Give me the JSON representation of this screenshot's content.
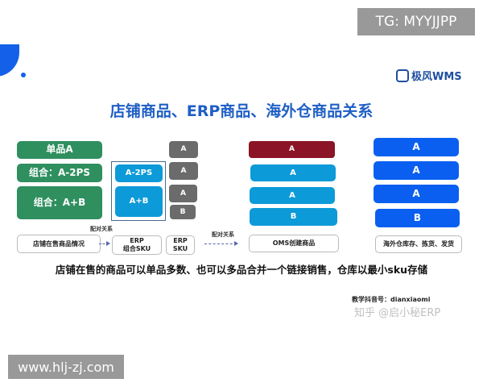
{
  "overlay_top": "TG: MYYJJPP",
  "overlay_bottom": "www.hlj-zj.com",
  "brand": "极风WMS",
  "title": "店铺商品、ERP商品、海外仓商品关系",
  "store_items": [
    "单品A",
    "组合：A-2PS",
    "组合：A+B"
  ],
  "erp_combo_items": [
    "A-2PS",
    "A+B"
  ],
  "erp_sku_items": [
    "A",
    "A",
    "A",
    "B"
  ],
  "oms_items": [
    "A",
    "A",
    "A",
    "B"
  ],
  "warehouse_items": [
    "A",
    "A",
    "A",
    "B"
  ],
  "labels": {
    "store": "店铺在售商品情况",
    "erp_combo_1": "ERP",
    "erp_combo_2": "组合SKU",
    "erp_sku_1": "ERP",
    "erp_sku_2": "SKU",
    "oms": "OMS创建商品",
    "warehouse": "海外仓库存、拣货、发货",
    "relation_1": "配对关系",
    "relation_2": "配对关系"
  },
  "summary": "店铺在售的商品可以单品多数、也可以多品合并一个链接销售，仓库以最小sku存储",
  "contact": "教学抖音号：dianxiaomi",
  "watermark": "知乎 @启小秘ERP",
  "colors": {
    "green": "#2f8f5f",
    "cyan": "#0d9ad8",
    "gray": "#6b6b6b",
    "red": "#8b1426",
    "blue": "#0a5ff0",
    "title": "#1f5fc4"
  }
}
